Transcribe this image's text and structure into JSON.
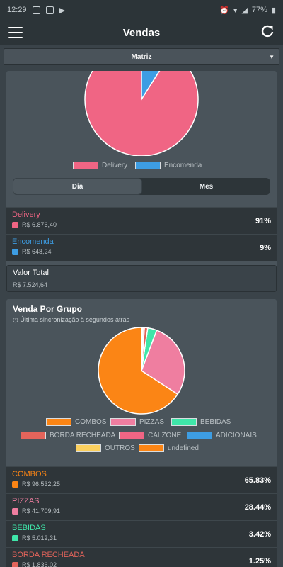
{
  "status": {
    "time": "12:29",
    "battery": "77%"
  },
  "header": {
    "title": "Vendas"
  },
  "branch_select": {
    "value": "Matriz"
  },
  "channel": {
    "legend": [
      {
        "label": "Delivery",
        "color": "#f06584"
      },
      {
        "label": "Encomenda",
        "color": "#3d9de3"
      }
    ],
    "tabs": [
      "Dia",
      "Mes"
    ],
    "rows": [
      {
        "name": "Delivery",
        "amount": "R$ 6.876,40",
        "percent": "91%",
        "color": "#f06584"
      },
      {
        "name": "Encomenda",
        "amount": "R$ 648,24",
        "percent": "9%",
        "color": "#3d9de3"
      }
    ],
    "total": {
      "label": "Valor Total",
      "value": "R$ 7.524,64"
    }
  },
  "groups": {
    "title": "Venda Por Grupo",
    "sync": "Última sincronização à segundos atrás",
    "legend": [
      {
        "label": "COMBOS",
        "color": "#fb8515"
      },
      {
        "label": "PIZZAS",
        "color": "#ef7ea0"
      },
      {
        "label": "BEBIDAS",
        "color": "#3fe6a9"
      },
      {
        "label": "BORDA RECHEADA",
        "color": "#e3645b"
      },
      {
        "label": "CALZONE",
        "color": "#f06584"
      },
      {
        "label": "ADICIONAIS",
        "color": "#3d9de3"
      },
      {
        "label": "OUTROS",
        "color": "#fbd05e"
      },
      {
        "label": "undefined",
        "color": "#fb8515"
      }
    ],
    "rows": [
      {
        "name": "COMBOS",
        "amount": "R$ 96.532,25",
        "percent": "65.83%",
        "color": "#fb8515"
      },
      {
        "name": "PIZZAS",
        "amount": "R$ 41.709,91",
        "percent": "28.44%",
        "color": "#ef7ea0"
      },
      {
        "name": "BEBIDAS",
        "amount": "R$ 5.012,31",
        "percent": "3.42%",
        "color": "#3fe6a9"
      },
      {
        "name": "BORDA RECHEADA",
        "amount": "R$ 1.836,02",
        "percent": "1.25%",
        "color": "#e3645b"
      }
    ]
  },
  "chart_data": [
    {
      "type": "pie",
      "categories": [
        "Delivery",
        "Encomenda"
      ],
      "values": [
        91,
        9
      ],
      "colors": [
        "#f06584",
        "#3d9de3"
      ],
      "legend": "bottom"
    },
    {
      "type": "pie",
      "categories": [
        "COMBOS",
        "PIZZAS",
        "BEBIDAS",
        "BORDA RECHEADA",
        "CALZONE",
        "ADICIONAIS",
        "OUTROS",
        "undefined"
      ],
      "values": [
        65.83,
        28.44,
        3.42,
        1.25,
        0.5,
        0.3,
        0.2,
        0.06
      ],
      "colors": [
        "#fb8515",
        "#ef7ea0",
        "#3fe6a9",
        "#e3645b",
        "#f06584",
        "#3d9de3",
        "#fbd05e",
        "#fb8515"
      ],
      "legend": "bottom"
    }
  ]
}
